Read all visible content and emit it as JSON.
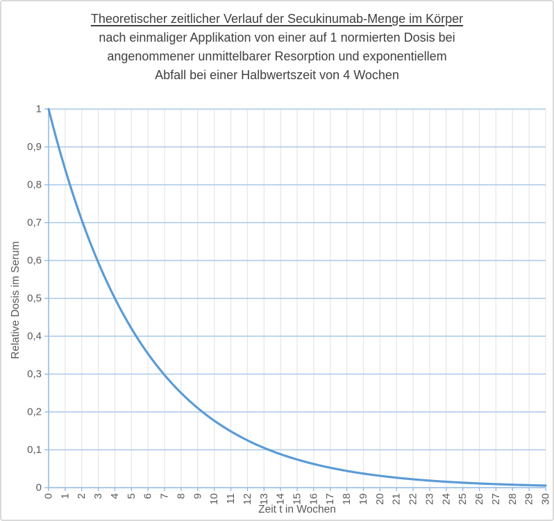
{
  "chart_data": {
    "type": "line",
    "title_lines": [
      "Theoretischer zeitlicher Verlauf der Secukinumab-Menge im Körper",
      "nach einmaliger Applikation von einer auf 1 normierten Dosis bei",
      "angenommener unmittelbarer Resorption und  exponentiellem",
      "Abfall bei einer Halbwertszeit von 4 Wochen"
    ],
    "underline_first_title_line": true,
    "xlabel": "Zeit t in Wochen",
    "ylabel": "Relative Dosis im Serum",
    "half_life_weeks": 4,
    "x": [
      0,
      1,
      2,
      3,
      4,
      5,
      6,
      7,
      8,
      9,
      10,
      11,
      12,
      13,
      14,
      15,
      16,
      17,
      18,
      19,
      20,
      21,
      22,
      23,
      24,
      25,
      26,
      27,
      28,
      29,
      30
    ],
    "values": [
      1,
      0.8409,
      0.7071,
      0.5946,
      0.5,
      0.4204,
      0.3536,
      0.2973,
      0.25,
      0.2102,
      0.1768,
      0.1487,
      0.125,
      0.1051,
      0.0884,
      0.0743,
      0.0625,
      0.0526,
      0.0442,
      0.0372,
      0.0313,
      0.0263,
      0.0221,
      0.0186,
      0.0156,
      0.0131,
      0.011,
      0.0093,
      0.0078,
      0.0066,
      0.0055
    ],
    "xlim": [
      0,
      30
    ],
    "ylim": [
      0,
      1
    ],
    "x_tick_labels": [
      "0",
      "1",
      "2",
      "3",
      "4",
      "5",
      "6",
      "7",
      "8",
      "9",
      "10",
      "11",
      "12",
      "13",
      "14",
      "15",
      "16",
      "17",
      "18",
      "19",
      "20",
      "21",
      "22",
      "23",
      "24",
      "25",
      "26",
      "27",
      "28",
      "29",
      "30"
    ],
    "y_ticks": [
      {
        "value": 0,
        "label": "0"
      },
      {
        "value": 0.1,
        "label": "0,1"
      },
      {
        "value": 0.2,
        "label": "0,2"
      },
      {
        "value": 0.3,
        "label": "0,3"
      },
      {
        "value": 0.4,
        "label": "0,4"
      },
      {
        "value": 0.5,
        "label": "0,5"
      },
      {
        "value": 0.6,
        "label": "0,6"
      },
      {
        "value": 0.7,
        "label": "0,7"
      },
      {
        "value": 0.8,
        "label": "0,8"
      },
      {
        "value": 0.9,
        "label": "0,9"
      },
      {
        "value": 1,
        "label": "1"
      }
    ],
    "grid": "both",
    "legend": "none",
    "colors": {
      "line": "#5B9BD5",
      "h_grid": "#A9C7E8",
      "v_grid": "#E7E7E7",
      "axis": "#8FB7E0",
      "tick": "#8FB7E0",
      "label": "#595959",
      "title": "#3F3F3F",
      "border": "#D9D9D9"
    }
  }
}
